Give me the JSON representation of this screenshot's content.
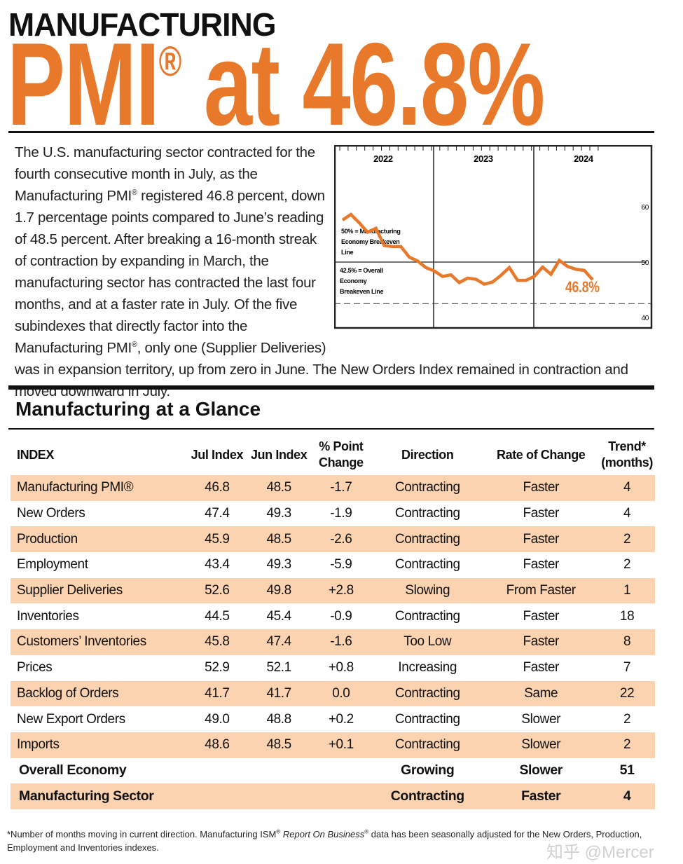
{
  "header": {
    "kicker": "MANUFACTURING",
    "headline": "PMI",
    "reg": "®",
    "headline_rest": " at 46.8%"
  },
  "colors": {
    "accent": "#e8782a",
    "row_shade": "#fbd3b0"
  },
  "paragraph": {
    "p1": "The U.S. manufacturing sector contracted for the fourth consecutive month in July, as the Manufacturing PMI",
    "p2": " registered 46.8 percent, down 1.7 percentage points compared to June’s reading of 48.5 percent. After breaking a 16-month streak of contraction by expanding in March, the manufacturing sector has contracted the last four months, and at a faster rate in July. Of the five subindexes that directly factor into the Manufacturing PMI",
    "p3": ", only one (Supplier Deliveries) was in expansion territory, up from zero in June. The New Orders Index remained in contraction and moved downward in July."
  },
  "chart_data": {
    "type": "line",
    "years": [
      "2022",
      "2023",
      "2024"
    ],
    "yticks": [
      60,
      50,
      40
    ],
    "ylim": [
      38.5,
      65
    ],
    "grid": false,
    "x": [
      "2022-01",
      "2022-02",
      "2022-03",
      "2022-04",
      "2022-05",
      "2022-06",
      "2022-07",
      "2022-08",
      "2022-09",
      "2022-10",
      "2022-11",
      "2022-12",
      "2023-01",
      "2023-02",
      "2023-03",
      "2023-04",
      "2023-05",
      "2023-06",
      "2023-07",
      "2023-08",
      "2023-09",
      "2023-10",
      "2023-11",
      "2023-12",
      "2024-01",
      "2024-02",
      "2024-03",
      "2024-04",
      "2024-05",
      "2024-06",
      "2024-07"
    ],
    "values": [
      57.6,
      58.6,
      57.1,
      55.4,
      56.1,
      53.0,
      52.8,
      52.8,
      50.9,
      50.2,
      49.0,
      48.4,
      47.4,
      47.7,
      46.3,
      47.1,
      46.9,
      46.0,
      46.4,
      47.6,
      49.0,
      46.7,
      46.7,
      47.4,
      49.1,
      47.8,
      50.3,
      49.2,
      48.7,
      48.5,
      46.8
    ],
    "reference_lines": [
      {
        "value": 50,
        "label": "50% = Manufacturing Economy Breakeven Line",
        "style": "solid"
      },
      {
        "value": 42.5,
        "label": "42.5% = Overall Economy Breakeven Line",
        "style": "dashed"
      }
    ],
    "annotation": "46.8%",
    "color": "#e8782a"
  },
  "glance": {
    "title": "Manufacturing at a Glance",
    "headers": [
      "INDEX",
      "Jul Index",
      "Jun Index",
      "% Point Change",
      "Direction",
      "Rate of Change",
      "Trend* (months)"
    ],
    "rows": [
      [
        "Manufacturing PMI®",
        "46.8",
        "48.5",
        "-1.7",
        "Contracting",
        "Faster",
        "4"
      ],
      [
        "New Orders",
        "47.4",
        "49.3",
        "-1.9",
        "Contracting",
        "Faster",
        "4"
      ],
      [
        "Production",
        "45.9",
        "48.5",
        "-2.6",
        "Contracting",
        "Faster",
        "2"
      ],
      [
        "Employment",
        "43.4",
        "49.3",
        "-5.9",
        "Contracting",
        "Faster",
        "2"
      ],
      [
        "Supplier Deliveries",
        "52.6",
        "49.8",
        "+2.8",
        "Slowing",
        "From Faster",
        "1"
      ],
      [
        "Inventories",
        "44.5",
        "45.4",
        "-0.9",
        "Contracting",
        "Faster",
        "18"
      ],
      [
        "Customers’ Inventories",
        "45.8",
        "47.4",
        "-1.6",
        "Too Low",
        "Faster",
        "8"
      ],
      [
        "Prices",
        "52.9",
        "52.1",
        "+0.8",
        "Increasing",
        "Faster",
        "7"
      ],
      [
        "Backlog of Orders",
        "41.7",
        "41.7",
        "0.0",
        "Contracting",
        "Same",
        "22"
      ],
      [
        "New Export Orders",
        "49.0",
        "48.8",
        "+0.2",
        "Contracting",
        "Slower",
        "2"
      ],
      [
        "Imports",
        "48.6",
        "48.5",
        "+0.1",
        "Contracting",
        "Slower",
        "2"
      ]
    ],
    "summary": [
      [
        "Overall Economy",
        "",
        "",
        "",
        "Growing",
        "Slower",
        "51"
      ],
      [
        "Manufacturing Sector",
        "",
        "",
        "",
        "Contracting",
        "Faster",
        "4"
      ]
    ]
  },
  "footnote": {
    "a": "*Number of months moving in current direction. Manufacturing ISM",
    "reg": "®",
    "b": " Report On Business",
    "c": " data has been seasonally adjusted for the New Orders, Production, Employment and Inventories indexes."
  },
  "watermark": "知乎 @Mercer"
}
